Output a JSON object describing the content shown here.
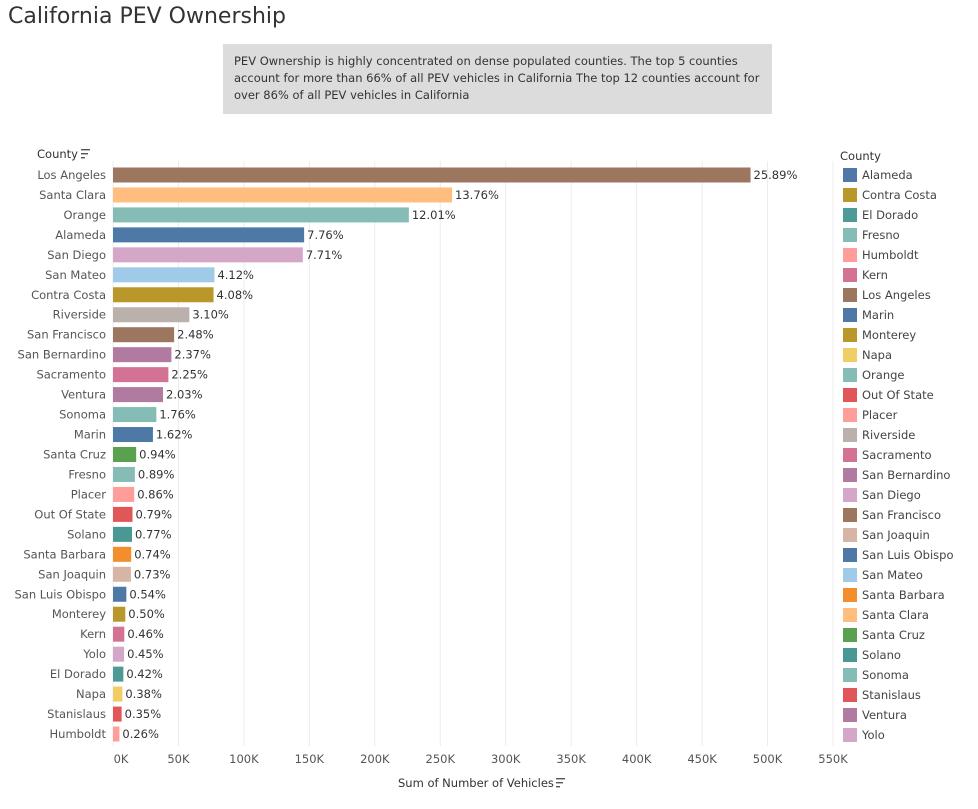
{
  "title": "California PEV Ownership",
  "note": [
    "PEV Ownership is highly concentrated on dense populated counties.  The top 5 counties",
    "account for more than 66% of all PEV vehicles in California The top 12 counties account for",
    "over 86% of all PEV vehicles in California"
  ],
  "chart_data": {
    "type": "bar",
    "orientation": "horizontal",
    "ylabel": "County",
    "xlabel": "Sum of Number of Vehicles",
    "xlim": [
      0,
      550000
    ],
    "xticks": [
      "0K",
      "50K",
      "100K",
      "150K",
      "200K",
      "250K",
      "300K",
      "350K",
      "400K",
      "450K",
      "500K",
      "550K"
    ],
    "grid": "vertical",
    "categories": [
      "Los Angeles",
      "Santa Clara",
      "Orange",
      "Alameda",
      "San Diego",
      "San Mateo",
      "Contra Costa",
      "Riverside",
      "San Francisco",
      "San Bernardino",
      "Sacramento",
      "Ventura",
      "Sonoma",
      "Marin",
      "Santa Cruz",
      "Fresno",
      "Placer",
      "Out Of State",
      "Solano",
      "Santa Barbara",
      "San Joaquin",
      "San Luis Obispo",
      "Monterey",
      "Kern",
      "Yolo",
      "El Dorado",
      "Napa",
      "Stanislaus",
      "Humboldt"
    ],
    "values": [
      487000,
      259000,
      226000,
      146000,
      145000,
      77500,
      76800,
      58300,
      46700,
      44600,
      42300,
      38200,
      33100,
      30500,
      17700,
      16700,
      16200,
      14900,
      14500,
      13900,
      13700,
      10200,
      9400,
      8650,
      8470,
      7900,
      7150,
      6590,
      4890
    ],
    "labels": [
      "25.89%",
      "13.76%",
      "12.01%",
      "7.76%",
      "7.71%",
      "4.12%",
      "4.08%",
      "3.10%",
      "2.48%",
      "2.37%",
      "2.25%",
      "2.03%",
      "1.76%",
      "1.62%",
      "0.94%",
      "0.89%",
      "0.86%",
      "0.79%",
      "0.77%",
      "0.74%",
      "0.73%",
      "0.54%",
      "0.50%",
      "0.46%",
      "0.45%",
      "0.42%",
      "0.38%",
      "0.35%",
      "0.26%"
    ],
    "legend_title": "County",
    "legend_placement": "right",
    "legend": [
      {
        "name": "Alameda",
        "color": "#4e79a7"
      },
      {
        "name": "Contra Costa",
        "color": "#b9972a"
      },
      {
        "name": "El Dorado",
        "color": "#4e9a96"
      },
      {
        "name": "Fresno",
        "color": "#86bcb6"
      },
      {
        "name": "Humboldt",
        "color": "#ff9d9a"
      },
      {
        "name": "Kern",
        "color": "#d37295"
      },
      {
        "name": "Los Angeles",
        "color": "#9d7660"
      },
      {
        "name": "Marin",
        "color": "#4e79a7"
      },
      {
        "name": "Monterey",
        "color": "#b9972a"
      },
      {
        "name": "Napa",
        "color": "#f1ce63"
      },
      {
        "name": "Orange",
        "color": "#86bcb6"
      },
      {
        "name": "Out Of State",
        "color": "#e15759"
      },
      {
        "name": "Placer",
        "color": "#ff9d9a"
      },
      {
        "name": "Riverside",
        "color": "#bab0ac"
      },
      {
        "name": "Sacramento",
        "color": "#d37295"
      },
      {
        "name": "San Bernardino",
        "color": "#b07aa1"
      },
      {
        "name": "San Diego",
        "color": "#d4a6c8"
      },
      {
        "name": "San Francisco",
        "color": "#9d7660"
      },
      {
        "name": "San Joaquin",
        "color": "#d7b5a6"
      },
      {
        "name": "San Luis Obispo",
        "color": "#4e79a7"
      },
      {
        "name": "San Mateo",
        "color": "#a0cbe8"
      },
      {
        "name": "Santa Barbara",
        "color": "#f28e2b"
      },
      {
        "name": "Santa Clara",
        "color": "#ffbe7d"
      },
      {
        "name": "Santa Cruz",
        "color": "#59a14f"
      },
      {
        "name": "Solano",
        "color": "#499894"
      },
      {
        "name": "Sonoma",
        "color": "#86bcb6"
      },
      {
        "name": "Stanislaus",
        "color": "#e15759"
      },
      {
        "name": "Ventura",
        "color": "#b07aa1"
      },
      {
        "name": "Yolo",
        "color": "#d4a6c8"
      }
    ]
  }
}
